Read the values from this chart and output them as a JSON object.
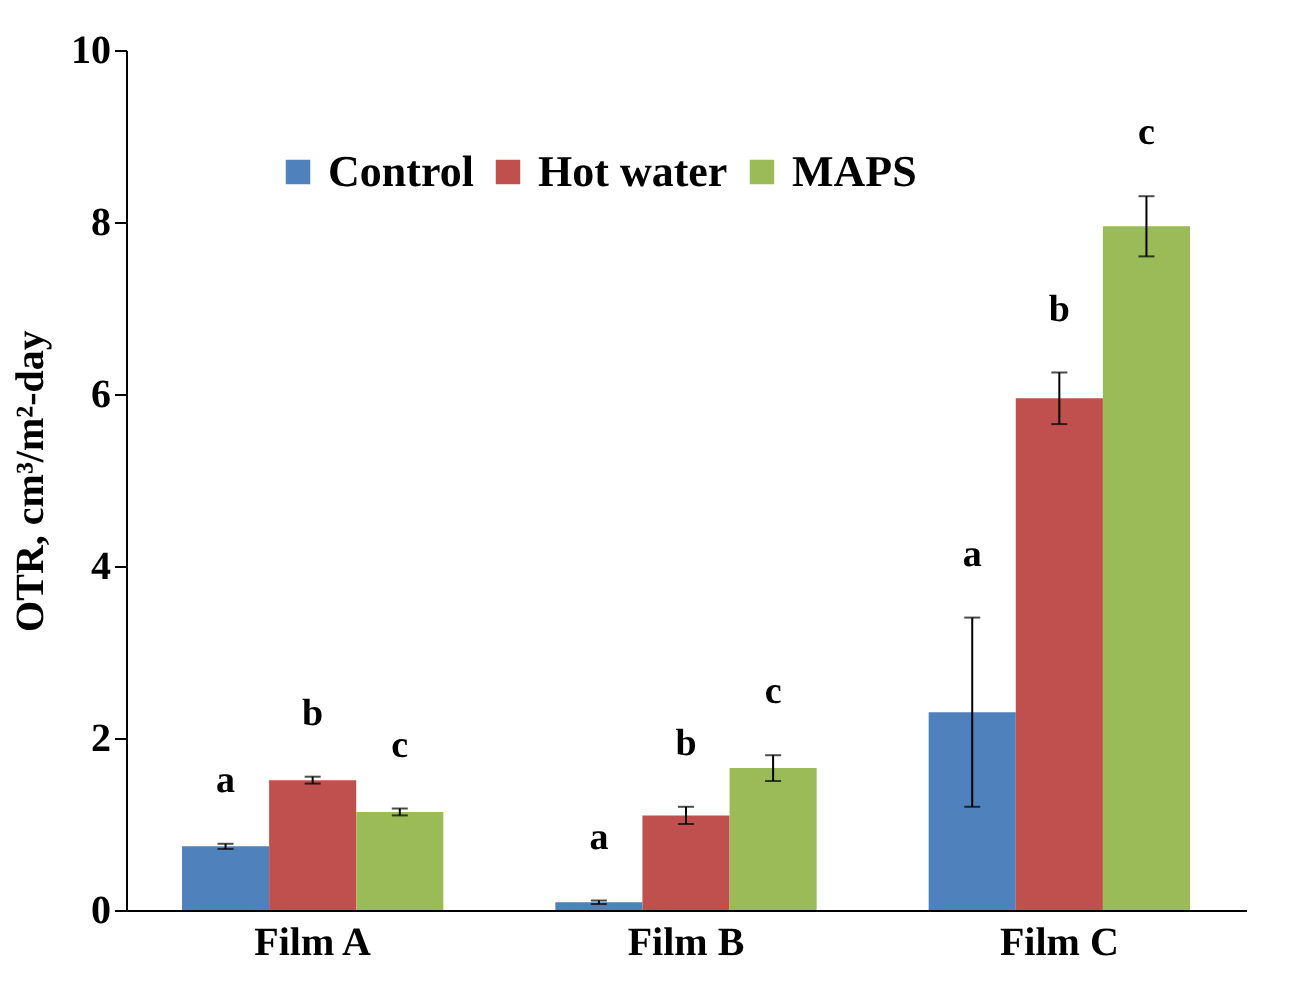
{
  "chart_data": {
    "type": "bar",
    "ylabel": "OTR, cm³/m²-day",
    "categories": [
      "Film A",
      "Film B",
      "Film C"
    ],
    "series": [
      {
        "name": "Control",
        "color": "#4f81bd",
        "values": [
          0.74,
          0.09,
          2.3
        ],
        "errors": [
          0.03,
          0.02,
          1.1
        ]
      },
      {
        "name": "Hot water",
        "color": "#c0504d",
        "values": [
          1.51,
          1.1,
          5.95
        ],
        "errors": [
          0.04,
          0.1,
          0.3
        ]
      },
      {
        "name": "MAPS",
        "color": "#9bbb59",
        "values": [
          1.14,
          1.65,
          7.95
        ],
        "errors": [
          0.04,
          0.15,
          0.35
        ]
      }
    ],
    "ylim": [
      0,
      10
    ],
    "yticks": [
      0,
      2,
      4,
      6,
      8,
      10
    ],
    "grid": false,
    "legend": "top left",
    "annotations": [
      "a",
      "b",
      "c",
      "a",
      "b",
      "c",
      "a",
      "b",
      "c"
    ]
  }
}
